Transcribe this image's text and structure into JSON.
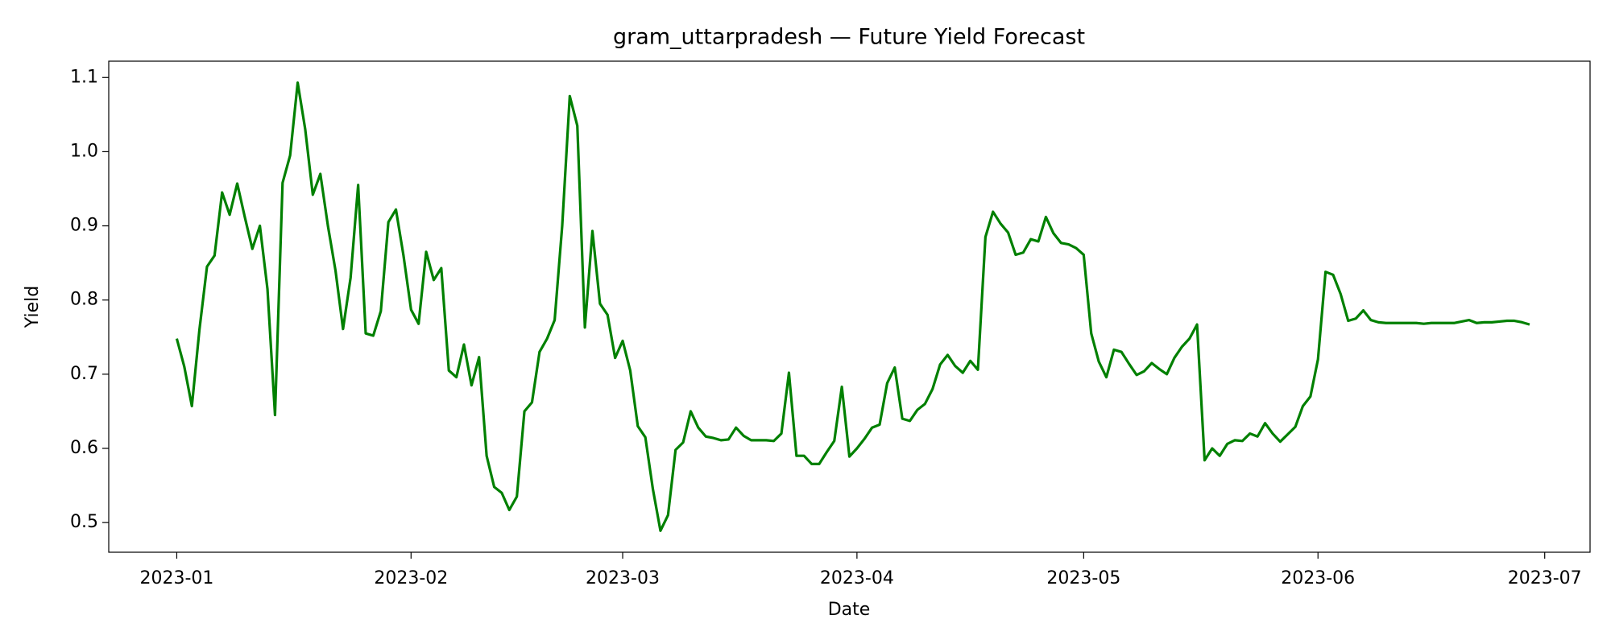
{
  "chart_data": {
    "type": "line",
    "title": "gram_uttarpradesh — Future Yield Forecast",
    "x_label": "Date",
    "y_label": "Yield",
    "x": [
      "2023-01-01",
      "2023-01-02",
      "2023-01-03",
      "2023-01-04",
      "2023-01-05",
      "2023-01-06",
      "2023-01-07",
      "2023-01-08",
      "2023-01-09",
      "2023-01-10",
      "2023-01-11",
      "2023-01-12",
      "2023-01-13",
      "2023-01-14",
      "2023-01-15",
      "2023-01-16",
      "2023-01-17",
      "2023-01-18",
      "2023-01-19",
      "2023-01-20",
      "2023-01-21",
      "2023-01-22",
      "2023-01-23",
      "2023-01-24",
      "2023-01-25",
      "2023-01-26",
      "2023-01-27",
      "2023-01-28",
      "2023-01-29",
      "2023-01-30",
      "2023-01-31",
      "2023-02-01",
      "2023-02-02",
      "2023-02-03",
      "2023-02-04",
      "2023-02-05",
      "2023-02-06",
      "2023-02-07",
      "2023-02-08",
      "2023-02-09",
      "2023-02-10",
      "2023-02-11",
      "2023-02-12",
      "2023-02-13",
      "2023-02-14",
      "2023-02-15",
      "2023-02-16",
      "2023-02-17",
      "2023-02-18",
      "2023-02-19",
      "2023-02-20",
      "2023-02-21",
      "2023-02-22",
      "2023-02-23",
      "2023-02-24",
      "2023-02-25",
      "2023-02-26",
      "2023-02-27",
      "2023-02-28",
      "2023-03-01",
      "2023-03-02",
      "2023-03-03",
      "2023-03-04",
      "2023-03-05",
      "2023-03-06",
      "2023-03-07",
      "2023-03-08",
      "2023-03-09",
      "2023-03-10",
      "2023-03-11",
      "2023-03-12",
      "2023-03-13",
      "2023-03-14",
      "2023-03-15",
      "2023-03-16",
      "2023-03-17",
      "2023-03-18",
      "2023-03-19",
      "2023-03-20",
      "2023-03-21",
      "2023-03-22",
      "2023-03-23",
      "2023-03-24",
      "2023-03-25",
      "2023-03-26",
      "2023-03-27",
      "2023-03-28",
      "2023-03-29",
      "2023-03-30",
      "2023-03-31",
      "2023-04-01",
      "2023-04-02",
      "2023-04-03",
      "2023-04-04",
      "2023-04-05",
      "2023-04-06",
      "2023-04-07",
      "2023-04-08",
      "2023-04-09",
      "2023-04-10",
      "2023-04-11",
      "2023-04-12",
      "2023-04-13",
      "2023-04-14",
      "2023-04-15",
      "2023-04-16",
      "2023-04-17",
      "2023-04-18",
      "2023-04-19",
      "2023-04-20",
      "2023-04-21",
      "2023-04-22",
      "2023-04-23",
      "2023-04-24",
      "2023-04-25",
      "2023-04-26",
      "2023-04-27",
      "2023-04-28",
      "2023-04-29",
      "2023-04-30",
      "2023-05-01",
      "2023-05-02",
      "2023-05-03",
      "2023-05-04",
      "2023-05-05",
      "2023-05-06",
      "2023-05-07",
      "2023-05-08",
      "2023-05-09",
      "2023-05-10",
      "2023-05-11",
      "2023-05-12",
      "2023-05-13",
      "2023-05-14",
      "2023-05-15",
      "2023-05-16",
      "2023-05-17",
      "2023-05-18",
      "2023-05-19",
      "2023-05-20",
      "2023-05-21",
      "2023-05-22",
      "2023-05-23",
      "2023-05-24",
      "2023-05-25",
      "2023-05-26",
      "2023-05-27",
      "2023-05-28",
      "2023-05-29",
      "2023-05-30",
      "2023-05-31",
      "2023-06-01",
      "2023-06-02",
      "2023-06-03",
      "2023-06-04",
      "2023-06-05",
      "2023-06-06",
      "2023-06-07",
      "2023-06-08",
      "2023-06-09",
      "2023-06-10",
      "2023-06-11",
      "2023-06-12",
      "2023-06-13",
      "2023-06-14",
      "2023-06-15",
      "2023-06-16",
      "2023-06-17",
      "2023-06-18",
      "2023-06-19",
      "2023-06-20",
      "2023-06-21",
      "2023-06-22",
      "2023-06-23",
      "2023-06-24",
      "2023-06-25",
      "2023-06-26",
      "2023-06-27",
      "2023-06-28",
      "2023-06-29"
    ],
    "series": [
      {
        "name": "Yield",
        "color": "#008000",
        "values": [
          0.748,
          0.71,
          0.657,
          0.76,
          0.845,
          0.86,
          0.945,
          0.915,
          0.957,
          0.912,
          0.869,
          0.9,
          0.815,
          0.645,
          0.958,
          0.995,
          1.093,
          1.03,
          0.942,
          0.97,
          0.9,
          0.84,
          0.761,
          0.83,
          0.955,
          0.755,
          0.752,
          0.785,
          0.905,
          0.922,
          0.86,
          0.787,
          0.768,
          0.865,
          0.827,
          0.843,
          0.705,
          0.696,
          0.74,
          0.685,
          0.723,
          0.59,
          0.548,
          0.54,
          0.517,
          0.535,
          0.65,
          0.662,
          0.73,
          0.748,
          0.773,
          0.9,
          1.075,
          1.035,
          0.763,
          0.893,
          0.795,
          0.78,
          0.722,
          0.745,
          0.705,
          0.63,
          0.615,
          0.545,
          0.489,
          0.51,
          0.598,
          0.608,
          0.65,
          0.628,
          0.616,
          0.614,
          0.611,
          0.612,
          0.628,
          0.617,
          0.611,
          0.611,
          0.611,
          0.61,
          0.62,
          0.702,
          0.59,
          0.59,
          0.579,
          0.579,
          0.595,
          0.61,
          0.683,
          0.589,
          0.6,
          0.613,
          0.628,
          0.632,
          0.688,
          0.709,
          0.64,
          0.637,
          0.652,
          0.66,
          0.68,
          0.713,
          0.726,
          0.711,
          0.702,
          0.718,
          0.706,
          0.885,
          0.919,
          0.903,
          0.891,
          0.861,
          0.864,
          0.882,
          0.879,
          0.912,
          0.89,
          0.877,
          0.875,
          0.87,
          0.861,
          0.755,
          0.717,
          0.696,
          0.733,
          0.73,
          0.714,
          0.699,
          0.704,
          0.715,
          0.707,
          0.7,
          0.722,
          0.737,
          0.748,
          0.767,
          0.584,
          0.6,
          0.59,
          0.606,
          0.611,
          0.61,
          0.62,
          0.616,
          0.634,
          0.62,
          0.609,
          0.619,
          0.629,
          0.657,
          0.67,
          0.72,
          0.838,
          0.834,
          0.808,
          0.772,
          0.775,
          0.786,
          0.773,
          0.77,
          0.769,
          0.769,
          0.769,
          0.769,
          0.769,
          0.768,
          0.769,
          0.769,
          0.769,
          0.769,
          0.771,
          0.773,
          0.769,
          0.77,
          0.77,
          0.771,
          0.772,
          0.772,
          0.77,
          0.767
        ]
      }
    ],
    "xlim": [
      "2022-12-23",
      "2023-07-07"
    ],
    "xticks": [
      {
        "value": "2023-01-01",
        "label": "2023-01"
      },
      {
        "value": "2023-02-01",
        "label": "2023-02"
      },
      {
        "value": "2023-03-01",
        "label": "2023-03"
      },
      {
        "value": "2023-04-01",
        "label": "2023-04"
      },
      {
        "value": "2023-05-01",
        "label": "2023-05"
      },
      {
        "value": "2023-06-01",
        "label": "2023-06"
      },
      {
        "value": "2023-07-01",
        "label": "2023-07"
      }
    ],
    "ylim": [
      0.46,
      1.122
    ],
    "yticks": [
      0.5,
      0.6,
      0.7,
      0.8,
      0.9,
      {
        "value": 1.0,
        "label": "1.0"
      },
      1.1
    ],
    "grid": false
  }
}
